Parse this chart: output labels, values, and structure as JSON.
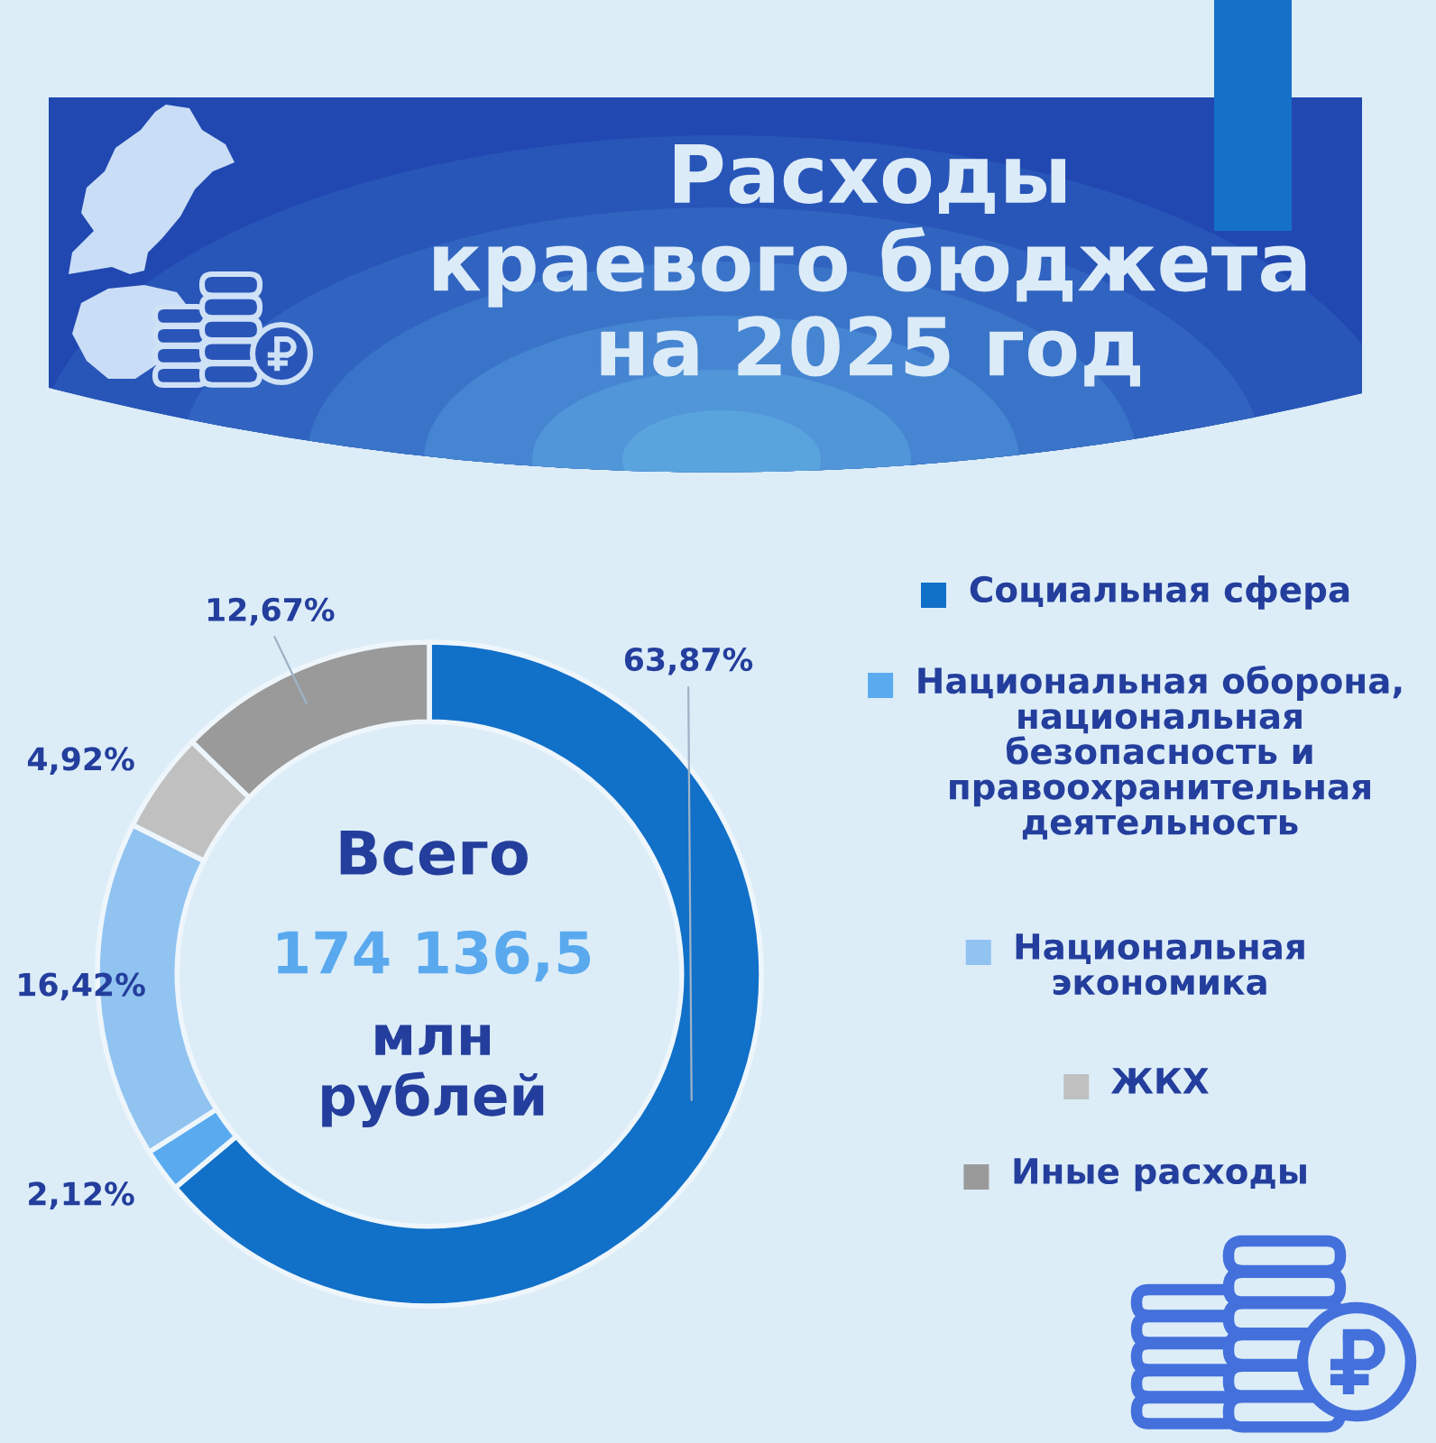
{
  "chart_data": {
    "type": "donut",
    "title": "Расходы\nкраевого бюджета\nна 2025 год",
    "categories": [
      "Социальная сфера",
      "Национальная оборона,\nнациональная\nбезопасность и\nправоохранительная\nдеятельность",
      "Национальная\nэкономика",
      "ЖКХ",
      "Иные расходы"
    ],
    "values": [
      63.87,
      2.12,
      16.42,
      4.92,
      12.67
    ],
    "colors": [
      "#1170c8",
      "#5aaaf0",
      "#91c3f1",
      "#c0c0c0",
      "#9a9a9a"
    ],
    "value_labels": [
      "63,87%",
      "2,12%",
      "16,42%",
      "4,92%",
      "12,67%"
    ],
    "annotations": [
      "Всего",
      "174 136,5",
      "млн\nрублей"
    ],
    "legend": "right"
  }
}
